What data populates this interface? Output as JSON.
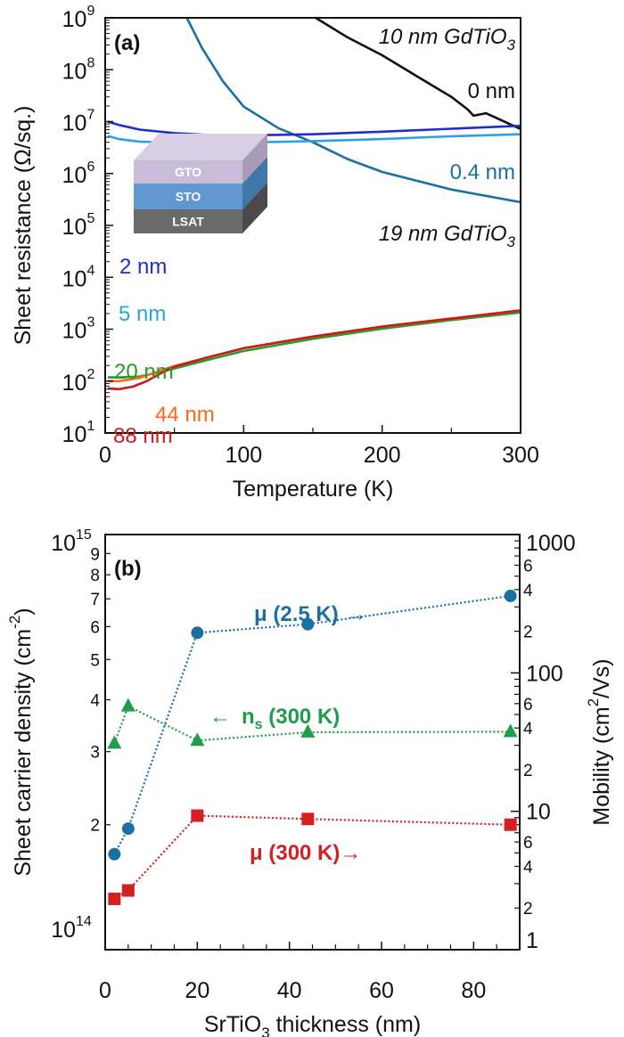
{
  "chart_data": [
    {
      "panel_label": "(a)",
      "type": "line",
      "xlabel": "Temperature (K)",
      "ylabel": "Sheet resistance (Ω/sq.)",
      "xlim": [
        0,
        300
      ],
      "ylim": [
        10,
        1000000000
      ],
      "yscale": "log",
      "xticks": [
        "0",
        "100",
        "200",
        "300"
      ],
      "yticks": [
        {
          "base": "10",
          "exp": "1"
        },
        {
          "base": "10",
          "exp": "2"
        },
        {
          "base": "10",
          "exp": "3"
        },
        {
          "base": "10",
          "exp": "4"
        },
        {
          "base": "10",
          "exp": "5"
        },
        {
          "base": "10",
          "exp": "6"
        },
        {
          "base": "10",
          "exp": "7"
        },
        {
          "base": "10",
          "exp": "8"
        },
        {
          "base": "10",
          "exp": "9"
        }
      ],
      "annotations": [
        {
          "text": "10 nm GdTiO",
          "sub": "3"
        },
        {
          "text": "19 nm GdTiO",
          "sub": "3"
        }
      ],
      "inset_layers": [
        "GTO",
        "STO",
        "LSAT"
      ],
      "series": [
        {
          "name": "0 nm",
          "color": "#111111",
          "x": [
            152,
            175,
            200,
            225,
            250,
            262,
            266,
            275,
            300
          ],
          "y": [
            1000000000,
            420000000,
            190000000,
            75000000,
            30000000,
            17000000,
            13000000,
            14500000,
            7200000
          ]
        },
        {
          "name": "0.4 nm",
          "color": "#1a6fa3",
          "x": [
            59,
            70,
            85,
            100,
            125,
            150,
            175,
            200,
            250,
            300
          ],
          "y": [
            1000000000,
            260000000,
            60000000,
            19500000,
            7500000,
            4000000,
            1900000,
            1070000,
            490000,
            280000
          ]
        },
        {
          "name": "2 nm",
          "color": "#1f2fc8",
          "x": [
            2,
            10,
            25,
            50,
            75,
            100,
            150,
            200,
            250,
            300
          ],
          "y": [
            10000000,
            8600000,
            7000000,
            6000000,
            5500000,
            5400000,
            5700000,
            6400000,
            7300000,
            8300000
          ]
        },
        {
          "name": "5 nm",
          "color": "#2ba2e2",
          "x": [
            2,
            10,
            25,
            50,
            100,
            150,
            200,
            250,
            300
          ],
          "y": [
            5300000,
            4600000,
            4100000,
            3950000,
            3950000,
            4200000,
            4600000,
            5200000,
            5700000
          ]
        },
        {
          "name": "20 nm",
          "color": "#2a9a2a",
          "x": [
            2,
            10,
            25,
            40,
            50,
            75,
            100,
            150,
            200,
            250,
            300
          ],
          "y": [
            118,
            118,
            122,
            150,
            175,
            260,
            380,
            650,
            1020,
            1500,
            2100
          ]
        },
        {
          "name": "44 nm",
          "color": "#ff6a1a",
          "x": [
            2,
            10,
            25,
            40,
            50,
            75,
            100,
            150,
            200,
            250,
            300
          ],
          "y": [
            100,
            100,
            115,
            160,
            195,
            290,
            430,
            720,
            1120,
            1600,
            2300
          ]
        },
        {
          "name": "88 nm",
          "color": "#cc1a1a",
          "x": [
            2,
            10,
            20,
            30,
            40,
            50,
            75,
            100,
            150,
            200,
            250,
            300
          ],
          "y": [
            72,
            70,
            78,
            100,
            140,
            190,
            290,
            430,
            720,
            1120,
            1600,
            2300
          ]
        }
      ]
    },
    {
      "panel_label": "(b)",
      "type": "scatter",
      "xlabel": "SrTiO",
      "xlabel_sub": "3",
      "xlabel_rest": " thickness (nm)",
      "ylabel": "Sheet carrier density (cm",
      "ylabel_sup": "-2",
      "ylabel_end": ")",
      "y2label": "Mobility (cm",
      "y2label_sup": "2",
      "y2label_end": "/Vs)",
      "xlim": [
        0,
        90
      ],
      "ylim": [
        100000000000000,
        1000000000000000
      ],
      "y2lim": [
        1,
        1000
      ],
      "yscale": "log",
      "y2scale": "log",
      "xticks": [
        "0",
        "20",
        "40",
        "60",
        "80"
      ],
      "yticks_major": [
        {
          "base": "10",
          "exp": "14"
        },
        {
          "base": "10",
          "exp": "15"
        }
      ],
      "yticks_minor": [
        "2",
        "3",
        "4",
        "5",
        "6",
        "7",
        "8",
        "9"
      ],
      "y2ticks_major": [
        "1",
        "10",
        "100",
        "1000"
      ],
      "y2ticks_minor": [
        "2",
        "4",
        "6"
      ],
      "x": [
        2,
        5,
        20,
        44,
        88
      ],
      "series": [
        {
          "name": "μ (2.5 K)",
          "arrow": "→",
          "axis": "right",
          "marker": "circle",
          "color": "#1a6fa3",
          "values": [
            4.9,
            7.5,
            195,
            225,
            360
          ]
        },
        {
          "name": "n",
          "name_sub": "s",
          "name_rest": " (300 K)",
          "arrow": "←",
          "axis": "left",
          "marker": "triangle",
          "color": "#1e9e4a",
          "values": [
            314000000000000,
            386000000000000,
            319000000000000,
            334000000000000,
            335000000000000
          ]
        },
        {
          "name": "μ (300 K)",
          "arrow": "→",
          "axis": "right",
          "marker": "square",
          "color": "#d42020",
          "values": [
            2.33,
            2.68,
            9.3,
            8.8,
            8.0
          ]
        }
      ]
    }
  ]
}
